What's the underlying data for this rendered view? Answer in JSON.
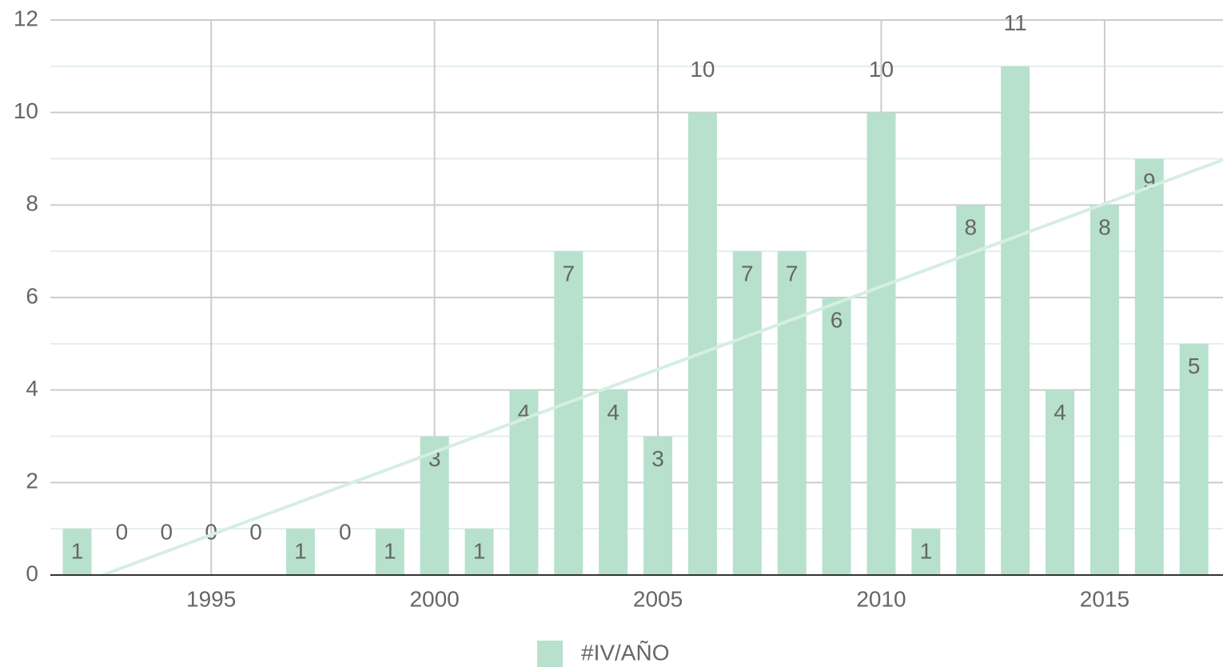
{
  "chart_data": {
    "type": "bar",
    "x": [
      1992,
      1993,
      1994,
      1995,
      1996,
      1997,
      1998,
      1999,
      2000,
      2001,
      2002,
      2003,
      2004,
      2005,
      2006,
      2007,
      2008,
      2009,
      2010,
      2011,
      2012,
      2013,
      2014,
      2015,
      2016,
      2017
    ],
    "series": [
      {
        "name": "#IV/AÑO",
        "color": "#b7e1cd",
        "values": [
          1,
          0,
          0,
          0,
          0,
          1,
          0,
          1,
          3,
          1,
          4,
          7,
          4,
          3,
          10,
          7,
          7,
          6,
          10,
          1,
          8,
          11,
          4,
          8,
          9,
          5
        ]
      }
    ],
    "xlim": [
      1991.4,
      2017.65
    ],
    "xticks": [
      1995,
      2000,
      2005,
      2010,
      2015
    ],
    "ylim": [
      0,
      12
    ],
    "yticks": [
      0,
      2,
      4,
      6,
      8,
      10,
      12
    ],
    "grid": true,
    "trendline": true,
    "legend": "bottom",
    "data_labels": true
  }
}
